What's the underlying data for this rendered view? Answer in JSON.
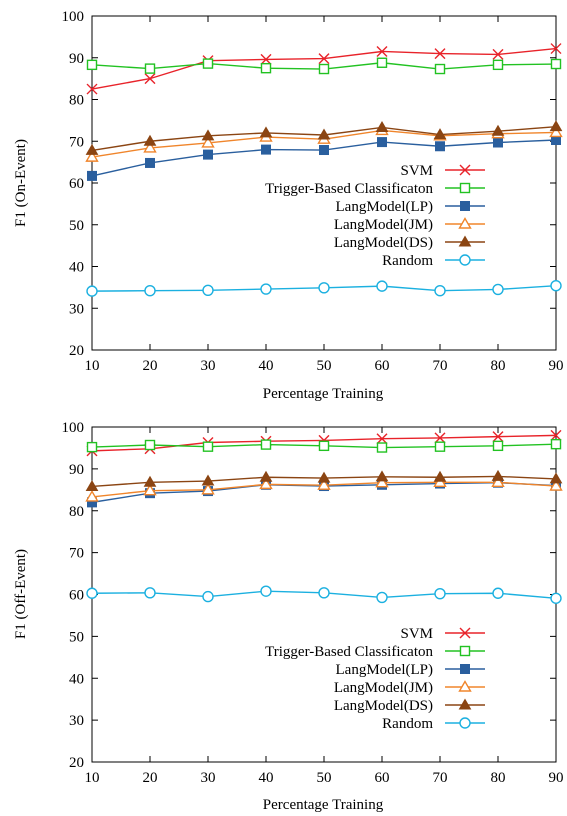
{
  "chart_data": [
    {
      "type": "line",
      "title": "",
      "xlabel": "Percentage Training",
      "ylabel": "F1 (On-Event)",
      "x": [
        10,
        20,
        30,
        40,
        50,
        60,
        70,
        80,
        90
      ],
      "xlim": [
        10,
        90
      ],
      "ylim": [
        20,
        100
      ],
      "xticks": [
        "10",
        "20",
        "30",
        "40",
        "50",
        "60",
        "70",
        "80",
        "90"
      ],
      "yticks": [
        "20",
        "30",
        "40",
        "50",
        "60",
        "70",
        "80",
        "90",
        "100"
      ],
      "grid": false,
      "legend_position": "right",
      "series": [
        {
          "name": "SVM",
          "marker": "cross",
          "color": "#e8232a",
          "values": [
            82.5,
            85.0,
            89.3,
            89.6,
            89.8,
            91.5,
            91.0,
            90.8,
            92.2
          ]
        },
        {
          "name": "Trigger-Based Classificaton",
          "marker": "open-square",
          "color": "#22c222",
          "values": [
            88.3,
            87.4,
            88.6,
            87.5,
            87.3,
            88.8,
            87.3,
            88.3,
            88.5
          ]
        },
        {
          "name": "LangModel(LP)",
          "marker": "filled-square",
          "color": "#2a5f9e",
          "values": [
            61.7,
            64.8,
            66.8,
            68.0,
            67.9,
            69.8,
            68.8,
            69.7,
            70.3
          ]
        },
        {
          "name": "LangModel(JM)",
          "marker": "open-triangle",
          "color": "#f0852b",
          "values": [
            66.2,
            68.4,
            69.6,
            71.0,
            70.5,
            72.6,
            71.3,
            71.8,
            72.1
          ]
        },
        {
          "name": "LangModel(DS)",
          "marker": "filled-triangle",
          "color": "#8b4513",
          "values": [
            67.8,
            70.0,
            71.3,
            72.0,
            71.5,
            73.3,
            71.6,
            72.4,
            73.5
          ]
        },
        {
          "name": "Random",
          "marker": "open-circle",
          "color": "#1bb0e0",
          "values": [
            34.1,
            34.2,
            34.3,
            34.6,
            34.9,
            35.3,
            34.2,
            34.5,
            35.4
          ]
        }
      ]
    },
    {
      "type": "line",
      "title": "",
      "xlabel": "Percentage Training",
      "ylabel": "F1 (Off-Event)",
      "x": [
        10,
        20,
        30,
        40,
        50,
        60,
        70,
        80,
        90
      ],
      "xlim": [
        10,
        90
      ],
      "ylim": [
        20,
        100
      ],
      "xticks": [
        "10",
        "20",
        "30",
        "40",
        "50",
        "60",
        "70",
        "80",
        "90"
      ],
      "yticks": [
        "20",
        "30",
        "40",
        "50",
        "60",
        "70",
        "80",
        "90",
        "100"
      ],
      "grid": false,
      "legend_position": "bottom-right",
      "series": [
        {
          "name": "SVM",
          "marker": "cross",
          "color": "#e8232a",
          "values": [
            94.3,
            94.8,
            96.3,
            96.6,
            96.8,
            97.2,
            97.4,
            97.7,
            98.0
          ]
        },
        {
          "name": "Trigger-Based Classificaton",
          "marker": "open-square",
          "color": "#22c222",
          "values": [
            95.2,
            95.7,
            95.3,
            95.8,
            95.5,
            95.1,
            95.3,
            95.5,
            95.9
          ]
        },
        {
          "name": "LangModel(LP)",
          "marker": "filled-square",
          "color": "#2a5f9e",
          "values": [
            82.0,
            84.2,
            84.7,
            86.2,
            85.9,
            86.2,
            86.5,
            86.7,
            86.0
          ]
        },
        {
          "name": "LangModel(JM)",
          "marker": "open-triangle",
          "color": "#f0852b",
          "values": [
            83.3,
            84.8,
            85.0,
            86.3,
            86.1,
            86.7,
            86.8,
            86.8,
            85.9
          ]
        },
        {
          "name": "LangModel(DS)",
          "marker": "filled-triangle",
          "color": "#8b4513",
          "values": [
            85.8,
            86.8,
            87.1,
            88.0,
            87.8,
            88.1,
            88.0,
            88.2,
            87.6
          ]
        },
        {
          "name": "Random",
          "marker": "open-circle",
          "color": "#1bb0e0",
          "values": [
            60.3,
            60.4,
            59.5,
            60.8,
            60.4,
            59.3,
            60.2,
            60.3,
            59.1
          ]
        }
      ]
    }
  ]
}
